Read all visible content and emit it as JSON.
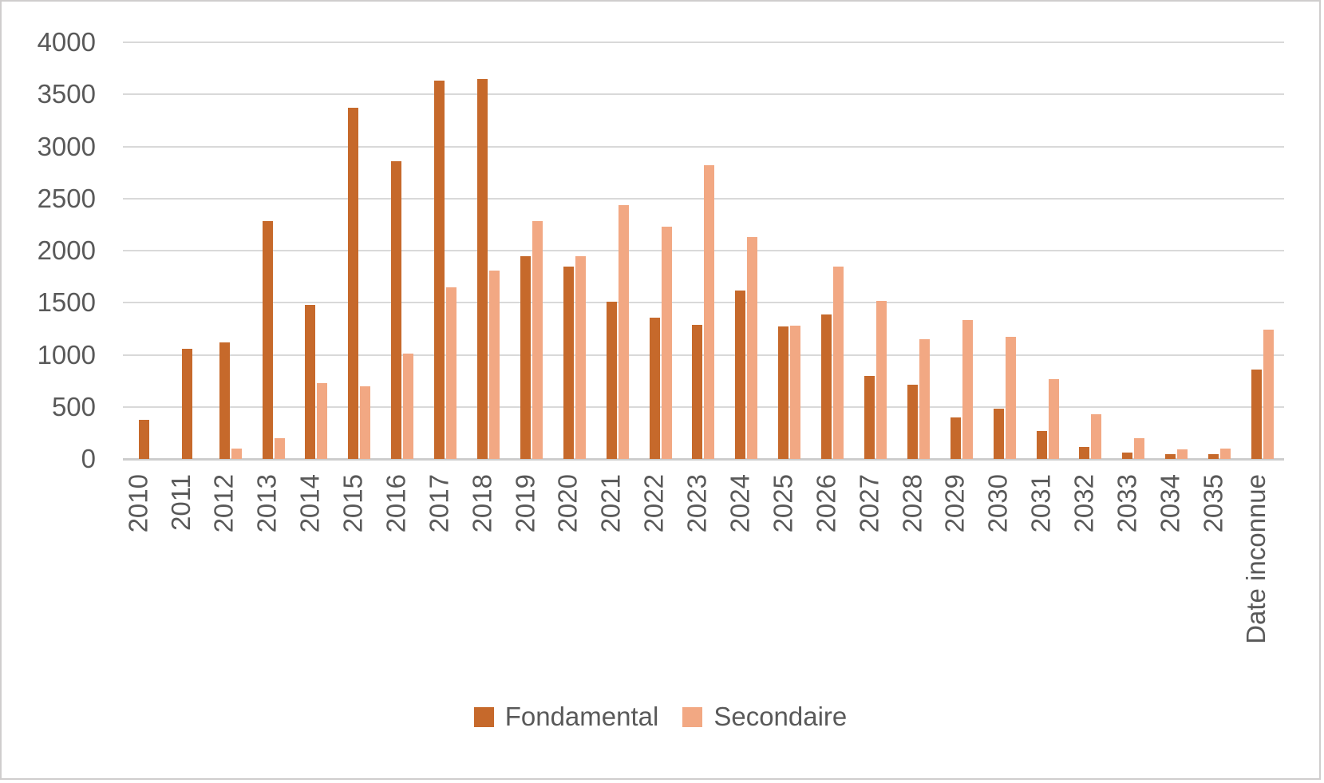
{
  "chart_data": {
    "type": "bar",
    "title": "",
    "xlabel": "",
    "ylabel": "",
    "categories": [
      "2010",
      "2011",
      "2012",
      "2013",
      "2014",
      "2015",
      "2016",
      "2017",
      "2018",
      "2019",
      "2020",
      "2021",
      "2022",
      "2023",
      "2024",
      "2025",
      "2026",
      "2027",
      "2028",
      "2029",
      "2030",
      "2031",
      "2032",
      "2033",
      "2034",
      "2035",
      "Date inconnue"
    ],
    "series": [
      {
        "name": "Fondamental",
        "color": "#C6692B",
        "values": [
          375,
          1060,
          1120,
          2280,
          1480,
          3370,
          2860,
          3630,
          3650,
          1950,
          1850,
          1510,
          1360,
          1290,
          1620,
          1270,
          1390,
          800,
          710,
          400,
          480,
          270,
          115,
          65,
          45,
          45,
          860
        ]
      },
      {
        "name": "Secondaire",
        "color": "#F2A883",
        "values": [
          0,
          0,
          100,
          200,
          730,
          700,
          1010,
          1650,
          1810,
          2280,
          1950,
          2440,
          2230,
          2820,
          2130,
          1280,
          1850,
          1520,
          1150,
          1330,
          1170,
          770,
          430,
          200,
          95,
          100,
          1240
        ]
      }
    ],
    "ylim": [
      0,
      4000
    ],
    "yticks": [
      0,
      500,
      1000,
      1500,
      2000,
      2500,
      3000,
      3500,
      4000
    ],
    "grid": true,
    "legend_position": "bottom",
    "x_tick_rotation_deg": -90
  },
  "colors": {
    "axis_text": "#595959",
    "gridline": "#D9D9D9",
    "axis_line": "#CDCDCD",
    "background": "#FFFFFF",
    "border": "#CFCDCD"
  }
}
